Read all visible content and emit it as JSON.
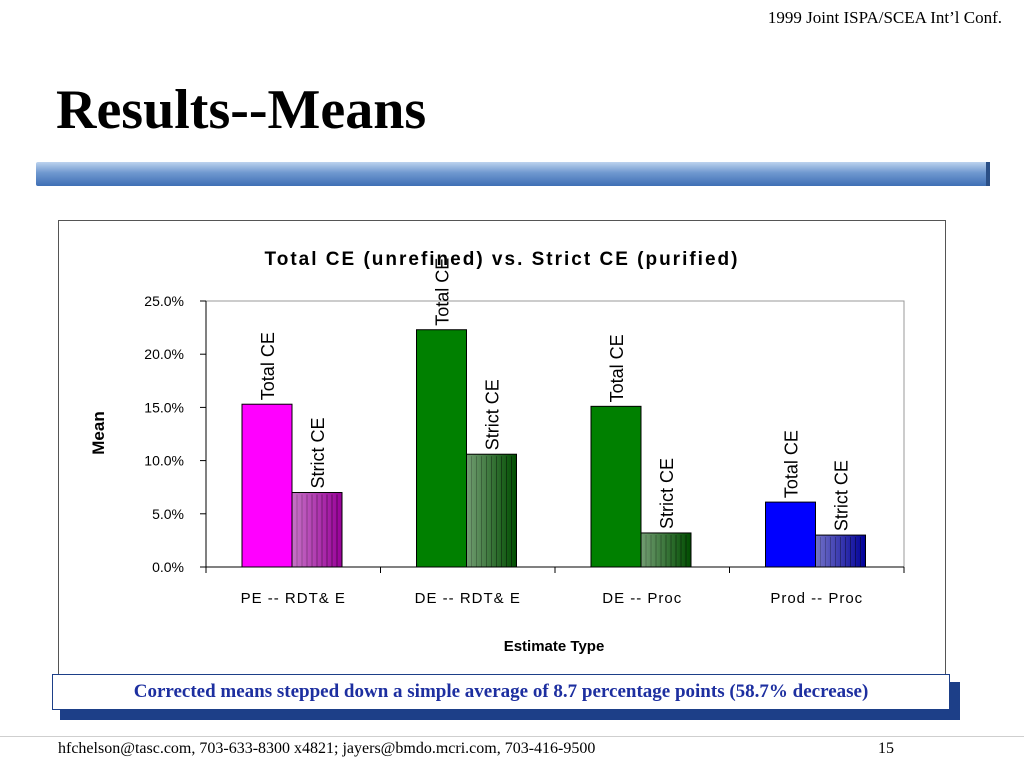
{
  "header": {
    "conference": "1999 Joint ISPA/SCEA Int’l Conf."
  },
  "slide": {
    "title": "Results--Means"
  },
  "chart_data": {
    "type": "bar",
    "title": "Total CE (unrefined) vs. Strict CE (purified)",
    "xlabel": "Estimate Type",
    "ylabel": "Mean",
    "categories": [
      "PE -- RDT& E",
      "DE -- RDT& E",
      "DE -- Proc",
      "Prod -- Proc"
    ],
    "ylim": [
      0,
      25
    ],
    "yticks": [
      "0.0%",
      "5.0%",
      "10.0%",
      "15.0%",
      "20.0%",
      "25.0%"
    ],
    "grid": false,
    "series": [
      {
        "name": "Total CE",
        "values": [
          15.3,
          22.3,
          15.1,
          6.1
        ]
      },
      {
        "name": "Strict CE",
        "values": [
          7.0,
          10.6,
          3.2,
          3.0
        ]
      }
    ],
    "colors": {
      "total": [
        "#ff00ff",
        "#008000",
        "#008000",
        "#0000ff"
      ],
      "strict": [
        "#990099",
        "#004d00",
        "#004d00",
        "#000099"
      ]
    }
  },
  "callout": {
    "text": "Corrected means stepped down a simple average of 8.7 percentage points (58.7% decrease)"
  },
  "footer": {
    "contact": "hfchelson@tasc.com, 703-633-8300 x4821; jayers@bmdo.mcri.com, 703-416-9500",
    "page_number": "15"
  }
}
